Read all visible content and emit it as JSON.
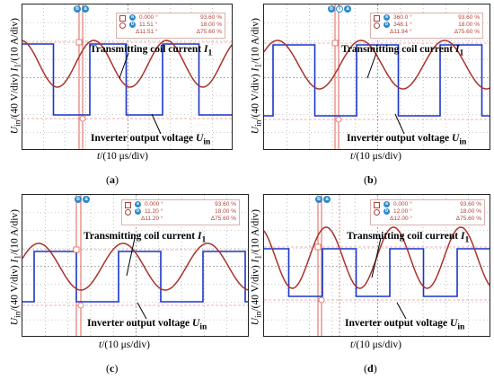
{
  "colors": {
    "current_trace": "#a8332c",
    "voltage_trace": "#1a36c9",
    "cursor_line": "#e0625a",
    "grid": "#9a9a9a",
    "tag": "#2f88c8"
  },
  "axis_labels": {
    "y": "Uin/(40 V/div) I1/(10 A/div)",
    "x": "t/(10 μs/div)"
  },
  "annotations": {
    "coil": "Transmitting coil current I1",
    "inverter": "Inverter output voltage Uin"
  },
  "cursor_tags": {
    "a": "a",
    "b": "b"
  },
  "panels": [
    {
      "caption": "a",
      "readout": {
        "row1_left": "0.000 °",
        "row1_right": "93.60 %",
        "row2_left": "11.51 °",
        "row2_right": "18.00 %",
        "row3_left": "Δ11.51 °",
        "row3_right": "Δ75.60 %"
      }
    },
    {
      "caption": "b",
      "readout": {
        "row1_left": "360.0 °",
        "row1_right": "93.60 %",
        "row2_left": "348.1 °",
        "row2_right": "18.00 %",
        "row3_left": "Δ11.94 °",
        "row3_right": "Δ75.60 %"
      }
    },
    {
      "caption": "c",
      "readout": {
        "row1_left": "0.000 °",
        "row1_right": "93.60 %",
        "row2_left": "11.20 °",
        "row2_right": "18.00 %",
        "row3_left": "Δ11.20 °",
        "row3_right": "Δ75.60 %"
      }
    },
    {
      "caption": "d",
      "readout": {
        "row1_left": "0.000 °",
        "row1_right": "93.60 %",
        "row2_left": "12.00 °",
        "row2_right": "18.00 %",
        "row3_left": "Δ12.00 °",
        "row3_right": "Δ75.60 %"
      }
    }
  ]
}
